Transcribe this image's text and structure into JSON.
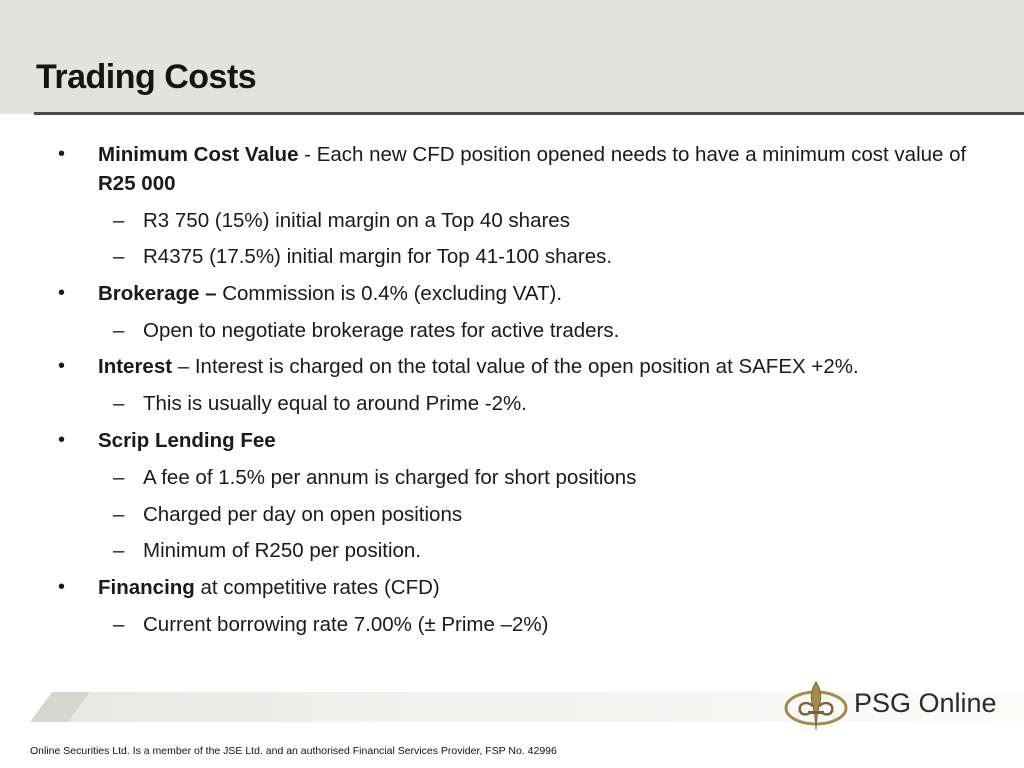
{
  "slide": {
    "title": "Trading Costs"
  },
  "items": [
    {
      "bold": "Minimum Cost Value",
      "text": " -  Each new CFD position opened needs to have a minimum cost value of ",
      "bold2": "R25 000"
    },
    {
      "text": "R3 750 (15%) initial margin on a Top 40 shares"
    },
    {
      "text": "R4375 (17.5%) initial margin for Top 41-100 shares."
    },
    {
      "bold": "Brokerage –",
      "text": " Commission is 0.4% (excluding VAT)."
    },
    {
      "text": "Open to negotiate brokerage rates for active traders."
    },
    {
      "bold": "Interest",
      "text": " – Interest is charged on the total value of the open position at SAFEX +2%."
    },
    {
      "text": "This is usually equal to around Prime -2%."
    },
    {
      "bold": "Scrip Lending Fee",
      "text": ""
    },
    {
      "text": "A fee of 1.5% per annum is charged for short positions"
    },
    {
      "text": "Charged per day on open positions"
    },
    {
      "text": "Minimum of R250 per position."
    },
    {
      "bold": "Financing",
      "text": " at competitive rates (CFD)"
    },
    {
      "text": "Current borrowing rate 7.00% (± Prime –2%)"
    }
  ],
  "markers": {
    "bullet": "•",
    "dash": "–"
  },
  "logo": {
    "text": "PSG Online",
    "icon": "fleur-de-lis-icon"
  },
  "footer": {
    "note": "Online Securities Ltd. Is a member of the JSE Ltd. and an authorised Financial Services Provider, FSP No. 42996"
  },
  "colors": {
    "header_bg": "#e2e2de",
    "rule": "#4a4a4a",
    "logo_gold": "#a58a4e"
  }
}
